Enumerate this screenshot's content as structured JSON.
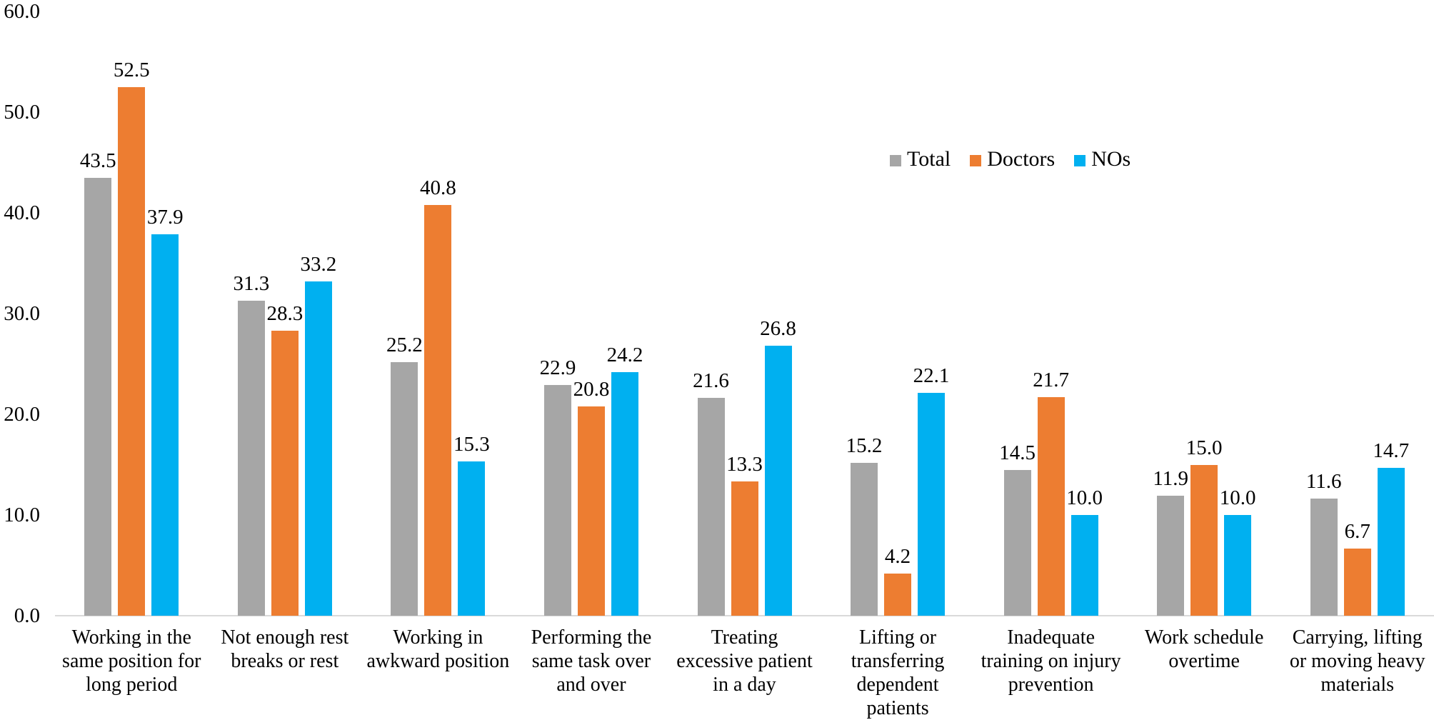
{
  "chart_data": {
    "type": "bar",
    "title": "",
    "xlabel": "",
    "ylabel": "",
    "ylim": [
      0,
      60
    ],
    "ytick_step": 10,
    "yticks": [
      "0.0",
      "10.0",
      "20.0",
      "30.0",
      "40.0",
      "50.0",
      "60.0"
    ],
    "grid": false,
    "legend_position": "top-right",
    "value_labels": "outside-end, one decimal",
    "categories": [
      "Working in the same position for long period",
      "Not enough rest breaks or rest",
      "Working in awkward position",
      "Performing the same task over and over",
      "Treating excessive patient in a day",
      "Lifting or transferring dependent patients",
      "Inadequate training on injury prevention",
      "Work schedule overtime",
      "Carrying, lifting or moving heavy materials"
    ],
    "series": [
      {
        "name": "Total",
        "color": "#a6a6a6",
        "values": [
          43.5,
          31.3,
          25.2,
          22.9,
          21.6,
          15.2,
          14.5,
          11.9,
          11.6
        ]
      },
      {
        "name": "Doctors",
        "color": "#ed7d31",
        "values": [
          52.5,
          28.3,
          40.8,
          20.8,
          13.3,
          4.2,
          21.7,
          15.0,
          6.7
        ]
      },
      {
        "name": "NOs",
        "color": "#00b0f0",
        "values": [
          37.9,
          33.2,
          15.3,
          24.2,
          26.8,
          22.1,
          10.0,
          10.0,
          14.7
        ]
      }
    ],
    "colors": {
      "axis_line": "#d9d9d9",
      "text": "#000000",
      "background": "#ffffff"
    }
  }
}
